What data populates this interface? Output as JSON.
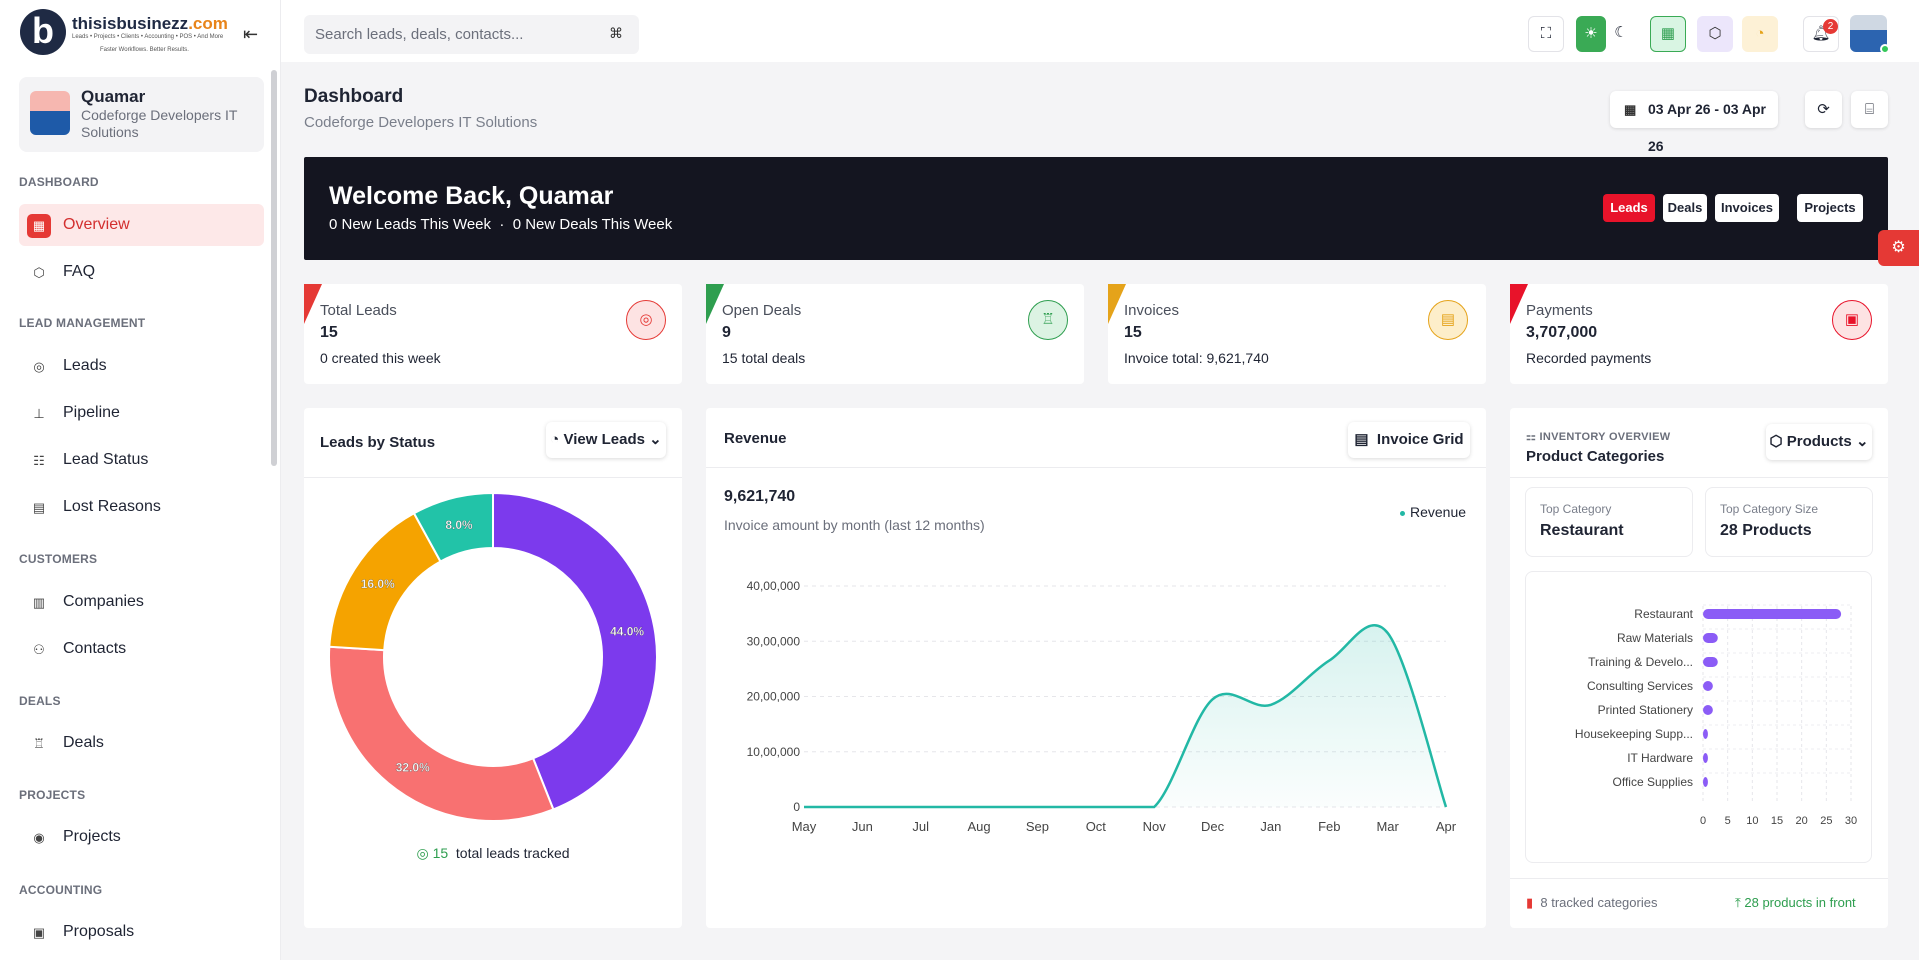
{
  "brand": {
    "name_part1": "thisisbusinezz",
    "name_part2": ".com",
    "subline": "Leads • Projects • Clients • Accounting • POS • And More",
    "tagline": "Faster Workflows. Better Results."
  },
  "user": {
    "name": "Quamar",
    "org_line1": "Codeforge Developers IT",
    "org_line2": "Solutions"
  },
  "nav": {
    "sections": {
      "dashboard": "DASHBOARD",
      "lead_management": "LEAD MANAGEMENT",
      "customers": "CUSTOMERS",
      "deals": "DEALS",
      "projects": "PROJECTS",
      "accounting": "ACCOUNTING"
    },
    "items": {
      "overview": "Overview",
      "faq": "FAQ",
      "leads": "Leads",
      "pipeline": "Pipeline",
      "lead_status": "Lead Status",
      "lost_reasons": "Lost Reasons",
      "companies": "Companies",
      "contacts": "Contacts",
      "deals": "Deals",
      "projects": "Projects",
      "proposals": "Proposals"
    }
  },
  "search": {
    "placeholder": "Search leads, deals, contacts...",
    "shortcut": "⌘"
  },
  "notifications": {
    "count": "2"
  },
  "page": {
    "title": "Dashboard",
    "subtitle": "Codeforge Developers IT Solutions",
    "date_range": "03 Apr 26 - 03 Apr 26"
  },
  "welcome": {
    "title": "Welcome Back, Quamar",
    "leads_week": "0 New Leads This Week",
    "sep": "·",
    "deals_week": "0 New Deals This Week",
    "buttons": [
      "Leads",
      "Deals",
      "Invoices",
      "Projects"
    ]
  },
  "stats": [
    {
      "title": "Total Leads",
      "value": "15",
      "sub": "0 created this week",
      "color": "#e53935"
    },
    {
      "title": "Open Deals",
      "value": "9",
      "sub": "15 total deals",
      "color": "#2e9e4f"
    },
    {
      "title": "Invoices",
      "value": "15",
      "sub": "Invoice total: 9,621,740",
      "color": "#e5a31a"
    },
    {
      "title": "Payments",
      "value": "3,707,000",
      "sub": "Recorded payments",
      "color": "#e8132a"
    }
  ],
  "leads_card": {
    "title": "Leads by Status",
    "button": "View Leads",
    "total": "15",
    "total_label": "total leads tracked"
  },
  "revenue_card": {
    "title": "Revenue",
    "button": "Invoice Grid",
    "amount": "9,621,740",
    "desc": "Invoice amount by month (last 12 months)",
    "legend": "Revenue"
  },
  "inventory_card": {
    "eyebrow": "INVENTORY OVERVIEW",
    "title": "Product Categories",
    "button": "Products",
    "top_category_label": "Top Category",
    "top_category": "Restaurant",
    "top_size_label": "Top Category Size",
    "top_size": "28 Products",
    "footer_left": "8 tracked categories",
    "footer_right": "28 products in front"
  },
  "chart_data": [
    {
      "type": "pie",
      "title": "Leads by Status",
      "slices": [
        {
          "label": "44.0%",
          "value": 44.0,
          "color": "#7c3aed"
        },
        {
          "label": "32.0%",
          "value": 32.0,
          "color": "#f87171"
        },
        {
          "label": "16.0%",
          "value": 16.0,
          "color": "#f5a300"
        },
        {
          "label": "8.0%",
          "value": 8.0,
          "color": "#22c3a8"
        }
      ]
    },
    {
      "type": "area",
      "title": "Revenue",
      "categories": [
        "May",
        "Jun",
        "Jul",
        "Aug",
        "Sep",
        "Oct",
        "Nov",
        "Dec",
        "Jan",
        "Feb",
        "Mar",
        "Apr"
      ],
      "series": [
        {
          "name": "Revenue",
          "values": [
            0,
            0,
            0,
            0,
            0,
            0,
            0,
            1950000,
            1850000,
            2650000,
            3150000,
            0
          ],
          "color": "#22b8a5"
        }
      ],
      "yticks": [
        "0",
        "10,00,000",
        "20,00,000",
        "30,00,000",
        "40,00,000"
      ],
      "ylim": [
        0,
        4000000
      ],
      "grid": true,
      "legend": "top-right"
    },
    {
      "type": "bar",
      "title": "Product Categories",
      "orientation": "horizontal",
      "categories": [
        "Restaurant",
        "Raw Materials",
        "Training & Develo...",
        "Consulting Services",
        "Printed Stationery",
        "Housekeeping Supp...",
        "IT Hardware",
        "Office Supplies"
      ],
      "values": [
        28,
        3,
        3,
        2,
        2,
        1,
        1,
        1
      ],
      "xticks": [
        "0",
        "5",
        "10",
        "15",
        "20",
        "25",
        "30"
      ],
      "xlim": [
        0,
        30
      ],
      "color": "#8b5cf6"
    }
  ]
}
